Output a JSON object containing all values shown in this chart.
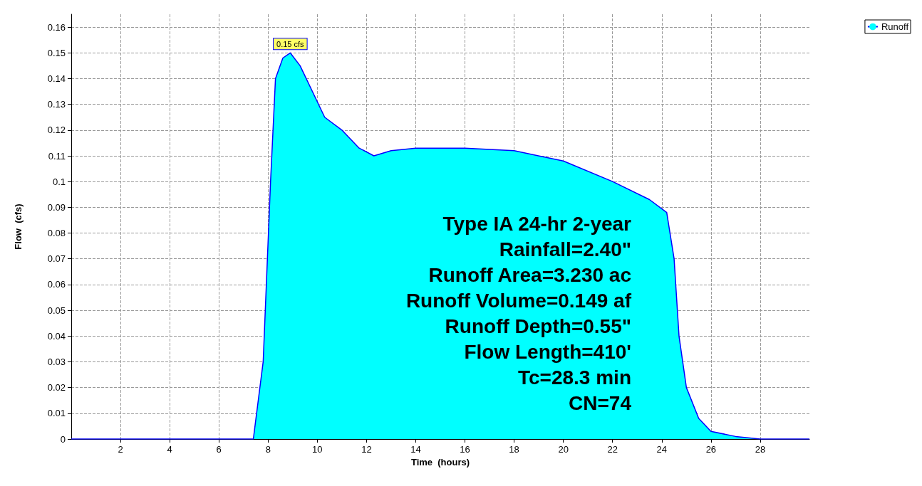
{
  "chart_data": {
    "type": "area",
    "xlabel": "Time  (hours)",
    "ylabel": "Flow  (cfs)",
    "x": [
      0,
      7.4,
      7.8,
      8.1,
      8.3,
      8.6,
      8.9,
      9.3,
      9.8,
      10.3,
      11,
      11.7,
      12.3,
      13,
      14,
      16,
      18,
      20,
      22,
      23.5,
      24.2,
      24.5,
      24.7,
      25,
      25.5,
      26,
      27,
      28,
      30
    ],
    "series": [
      {
        "name": "Runoff",
        "color": "#00ffff",
        "values": [
          0,
          0,
          0.03,
          0.1,
          0.14,
          0.148,
          0.15,
          0.145,
          0.135,
          0.125,
          0.12,
          0.113,
          0.11,
          0.112,
          0.113,
          0.113,
          0.112,
          0.108,
          0.1,
          0.093,
          0.088,
          0.07,
          0.04,
          0.02,
          0.008,
          0.003,
          0.001,
          0,
          0
        ]
      }
    ],
    "xlim": [
      0,
      30
    ],
    "xticks": [
      2,
      4,
      6,
      8,
      10,
      12,
      14,
      16,
      18,
      20,
      22,
      24,
      26,
      28
    ],
    "ylim": [
      0,
      0.165
    ],
    "yticks": [
      0,
      0.01,
      0.02,
      0.03,
      0.04,
      0.05,
      0.06,
      0.07,
      0.08,
      0.09,
      0.1,
      0.11,
      0.12,
      0.13,
      0.14,
      0.15,
      0.16
    ],
    "grid": true,
    "legend": "top right",
    "line_style": "solid",
    "annotations": [
      {
        "text": "0.15 cfs",
        "x": 8.9,
        "y": 0.15
      },
      "Type IA 24-hr 2-year",
      "Rainfall=2.40\"",
      "Runoff Area=3.230 ac",
      "Runoff Volume=0.149 af",
      "Runoff Depth=0.55\"",
      "Flow Length=410'",
      "Tc=28.3 min",
      "CN=74"
    ]
  }
}
